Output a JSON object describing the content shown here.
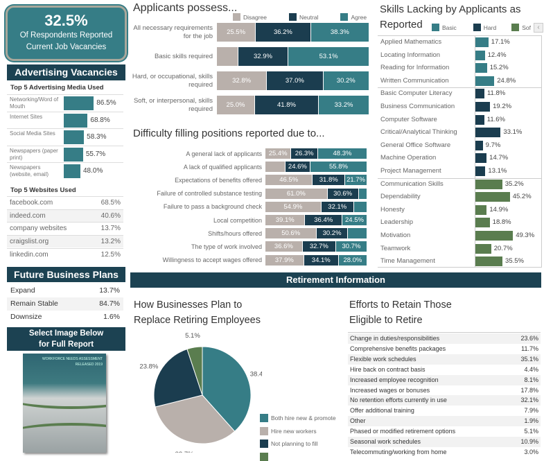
{
  "colors": {
    "teal": "#367d86",
    "dark": "#1b3d4f",
    "gray": "#b9b0ab",
    "green": "#5a7d4f",
    "header": "#1c4252"
  },
  "kpi": {
    "value": "32.5%",
    "line1": "Of Respondents Reported",
    "line2": "Current Job Vacancies"
  },
  "advertising": {
    "header": "Advertising Vacancies",
    "media_title": "Top 5 Advertising Media Used",
    "media": [
      {
        "label": "Networking/Word of Mouth",
        "value": 86.5
      },
      {
        "label": "Internet Sites",
        "value": 68.8
      },
      {
        "label": "Social Media Sites",
        "value": 58.3
      },
      {
        "label": "Newspapers (paper print)",
        "value": 55.7
      },
      {
        "label": "Newspapers (website, email)",
        "value": 48.0
      }
    ],
    "websites_title": "Top 5 Websites Used",
    "websites": [
      {
        "label": "facebook.com",
        "value": "68.5%"
      },
      {
        "label": "indeed.com",
        "value": "40.6%"
      },
      {
        "label": "company websites",
        "value": "13.7%"
      },
      {
        "label": "craigslist.org",
        "value": "13.2%"
      },
      {
        "label": "linkedin.com",
        "value": "12.5%"
      }
    ]
  },
  "future": {
    "header": "Future Business Plans",
    "rows": [
      {
        "label": "Expand",
        "value": "13.7%"
      },
      {
        "label": "Remain Stable",
        "value": "84.7%"
      },
      {
        "label": "Downsize",
        "value": "1.6%"
      }
    ]
  },
  "report": {
    "header_line1": "Select Image Below",
    "header_line2": "for Full Report",
    "cover_line1": "WORKFORCE NEEDS ASSESSMENT",
    "cover_line2": "RELEASED 2019"
  },
  "applicants": {
    "title": "Applicants possess...",
    "legend": [
      "Disagree",
      "Neutral",
      "Agree"
    ],
    "rows": [
      {
        "label": "All necessary requirements for the job",
        "values": [
          25.5,
          36.2,
          38.3
        ]
      },
      {
        "label": "Basic skills required",
        "values": [
          14.0,
          32.9,
          53.1
        ]
      },
      {
        "label": "Hard, or occupational, skills required",
        "values": [
          32.8,
          37.0,
          30.2
        ]
      },
      {
        "label": "Soft, or interpersonal, skills required",
        "values": [
          25.0,
          41.8,
          33.2
        ]
      }
    ]
  },
  "difficulty": {
    "title": "Difficulty filling positions reported due to...",
    "rows": [
      {
        "label": "A general lack of applicants",
        "values": [
          25.4,
          26.3,
          48.3
        ]
      },
      {
        "label": "A lack of qualified applicants",
        "values": [
          19.6,
          24.6,
          55.8
        ]
      },
      {
        "label": "Expectations of benefits offered",
        "values": [
          46.5,
          31.8,
          21.7
        ]
      },
      {
        "label": "Failure of controlled substance testing",
        "values": [
          61.0,
          30.6,
          8.4
        ]
      },
      {
        "label": "Failure to pass a background check",
        "values": [
          54.9,
          32.1,
          13.0
        ]
      },
      {
        "label": "Local competition",
        "values": [
          39.1,
          36.4,
          24.5
        ]
      },
      {
        "label": "Shifts/hours offered",
        "values": [
          50.6,
          30.2,
          19.2
        ]
      },
      {
        "label": "The type of work involved",
        "values": [
          36.6,
          32.7,
          30.7
        ]
      },
      {
        "label": "Willingness to accept wages offered",
        "values": [
          37.9,
          34.1,
          28.0
        ]
      }
    ]
  },
  "skills": {
    "title_line1": "Skills Lacking by Applicants as",
    "title_line2": "Reported",
    "legend": [
      "Basic",
      "Hard",
      "Sof"
    ],
    "groups": [
      {
        "type": "Basic",
        "items": [
          {
            "label": "Applied Mathematics",
            "value": 17.1
          },
          {
            "label": "Locating Information",
            "value": 12.4
          },
          {
            "label": "Reading for Information",
            "value": 15.2
          },
          {
            "label": "Written Communication",
            "value": 24.8
          }
        ]
      },
      {
        "type": "Hard",
        "items": [
          {
            "label": "Basic Computer Literacy",
            "value": 11.8
          },
          {
            "label": "Business Communication",
            "value": 19.2
          },
          {
            "label": "Computer Software",
            "value": 11.6
          },
          {
            "label": "Critical/Analytical Thinking",
            "value": 33.1
          },
          {
            "label": "General Office Software",
            "value": 9.7
          },
          {
            "label": "Machine Operation",
            "value": 14.7
          },
          {
            "label": "Project Management",
            "value": 13.1
          }
        ]
      },
      {
        "type": "Soft",
        "items": [
          {
            "label": "Communication Skills",
            "value": 35.2
          },
          {
            "label": "Dependability",
            "value": 45.2
          },
          {
            "label": "Honesty",
            "value": 14.9
          },
          {
            "label": "Leadership",
            "value": 18.8
          },
          {
            "label": "Motivation",
            "value": 49.3
          },
          {
            "label": "Teamwork",
            "value": 20.7
          },
          {
            "label": "Time Management",
            "value": 35.5
          }
        ]
      }
    ]
  },
  "retirement": {
    "header": "Retirement Information",
    "pie_title_line1": "How Businesses Plan to",
    "pie_title_line2": "Replace Retiring Employees",
    "chart_data": {
      "type": "pie",
      "slices": [
        {
          "name": "Both hire new & promote",
          "value": 38.4
        },
        {
          "name": "Hire new workers",
          "value": 32.7
        },
        {
          "name": "Not planning to fill",
          "value": 23.8
        },
        {
          "name": "",
          "value": 5.1
        }
      ]
    },
    "efforts_title_line1": "Efforts to Retain Those",
    "efforts_title_line2": "Eligible to Retire",
    "efforts": [
      {
        "label": "Change in duties/responsibilities",
        "value": "23.6%"
      },
      {
        "label": "Comprehensive benefits packages",
        "value": "11.7%"
      },
      {
        "label": "Flexible work schedules",
        "value": "35.1%"
      },
      {
        "label": "Hire back on contract basis",
        "value": "4.4%"
      },
      {
        "label": "Increased employee recognition",
        "value": "8.1%"
      },
      {
        "label": "Increased wages or bonuses",
        "value": "17.8%"
      },
      {
        "label": "No retention efforts currently in use",
        "value": "32.1%"
      },
      {
        "label": "Offer additional training",
        "value": "7.9%"
      },
      {
        "label": "Other",
        "value": "1.9%"
      },
      {
        "label": "Phased or modified retirement options",
        "value": "5.1%"
      },
      {
        "label": "Seasonal work schedules",
        "value": "10.9%"
      },
      {
        "label": "Telecommuting/working from home",
        "value": "3.0%"
      }
    ]
  }
}
